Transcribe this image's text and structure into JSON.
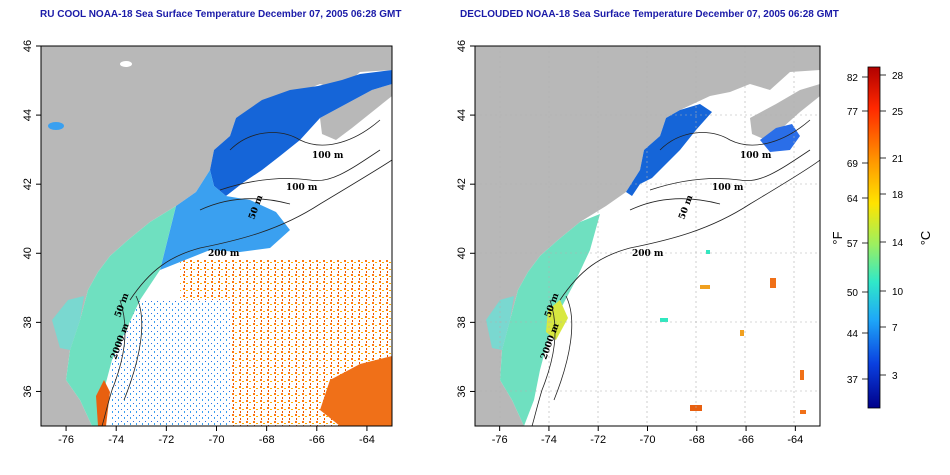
{
  "titles": {
    "left": "RU COOL NOAA-18 Sea Surface Temperature December 07, 2005 06:28 GMT",
    "right": "DECLOUDED NOAA-18 Sea Surface Temperature December 07, 2005 06:28 GMT"
  },
  "axes": {
    "lat_ticks": [
      "36",
      "38",
      "40",
      "42",
      "44",
      "46"
    ],
    "lon_ticks": [
      "-76",
      "-74",
      "-72",
      "-70",
      "-68",
      "-66",
      "-64"
    ],
    "lat_values": [
      36,
      38,
      40,
      42,
      44,
      46
    ],
    "lon_values": [
      -76,
      -74,
      -72,
      -70,
      -68,
      -66,
      -64
    ],
    "lat_range": [
      35,
      46
    ],
    "lon_range": [
      -77,
      -63
    ]
  },
  "contour_labels": {
    "left": [
      "100 m",
      "100 m",
      "50 m",
      "200 m",
      "50 m",
      "2000 m"
    ],
    "right": [
      "100 m",
      "100 m",
      "50 m",
      "200 m",
      "50 m",
      "2000 m"
    ]
  },
  "colorbar": {
    "f_labels": [
      "82",
      "77",
      "69",
      "64",
      "57",
      "50",
      "44",
      "37"
    ],
    "c_labels": [
      "28",
      "25",
      "21",
      "18",
      "14",
      "10",
      "7",
      "3"
    ],
    "f_unit": "°F",
    "c_unit": "°C",
    "colors": [
      "#c00000",
      "#ff3000",
      "#ff9a00",
      "#ffe000",
      "#a8f060",
      "#30e8c0",
      "#20a8f8",
      "#0a40e0",
      "#000090"
    ]
  },
  "map_colors": {
    "land": "#b8b8b8",
    "water_missing": "#ffffff",
    "cold": "#1565d8",
    "cool": "#3aa0f0",
    "mild": "#6fe0c0",
    "warm": "#f0c020",
    "hot": "#e86010"
  }
}
